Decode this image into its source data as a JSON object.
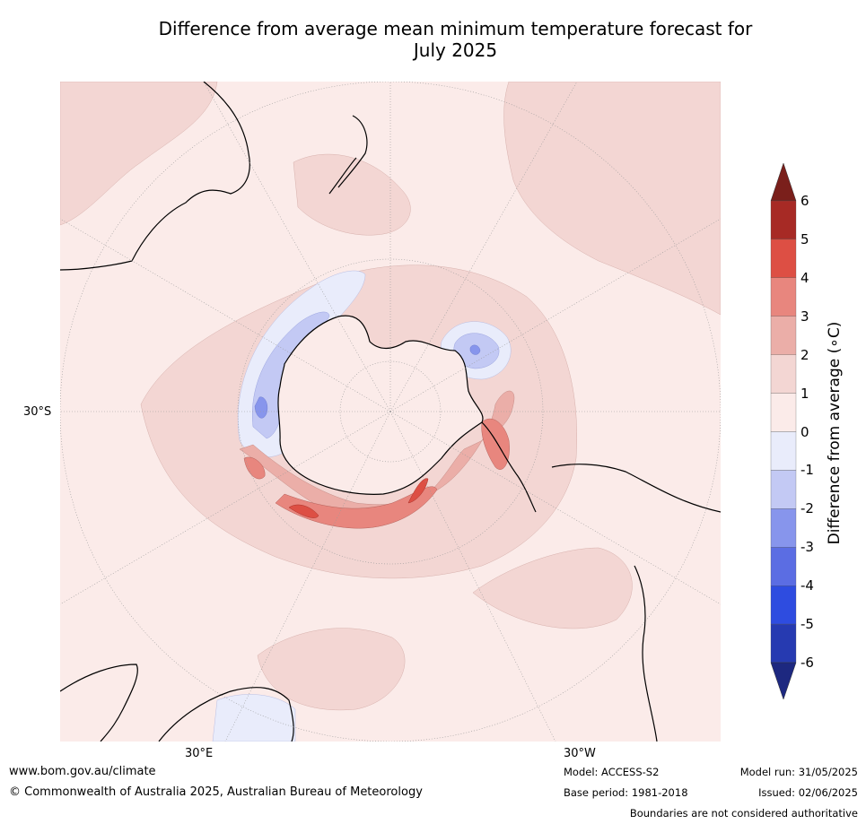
{
  "title_line1": "Difference from average mean minimum temperature forecast for",
  "title_line2": "July 2025",
  "map": {
    "projection": "south-polar-stereographic",
    "lat_labels": {
      "left": "30°S",
      "bottom_left": "30°E",
      "bottom_right": "30°W"
    },
    "colors": {
      "ocean_background": "#fbebe9",
      "anomaly_0_1": "#fbebe9",
      "anomaly_1_2": "#f3d6d3",
      "anomaly_2_3": "#ebaea8",
      "anomaly_3_4": "#e8867e",
      "anomaly_4_5": "#dd4f44",
      "anomaly_5_6": "#a72a25",
      "anomaly_neg_0_1": "#e9ecfb",
      "anomaly_neg_1_2": "#c3c9f4",
      "anomaly_neg_2_3": "#8795ec"
    }
  },
  "colorbar": {
    "label": "Difference from average (∘C)",
    "ticks": [
      "6",
      "5",
      "4",
      "3",
      "2",
      "1",
      "0",
      "-1",
      "-2",
      "-3",
      "-4",
      "-5",
      "-6"
    ],
    "colors": [
      "#a72a25",
      "#dd4f44",
      "#e8867e",
      "#ebaea8",
      "#f3d6d3",
      "#fbebe9",
      "#e9ecfb",
      "#c3c9f4",
      "#8795ec",
      "#5b6de3",
      "#2e4ce0",
      "#263ab1"
    ],
    "over_color": "#7a1f1b",
    "under_color": "#1d2880"
  },
  "footer": {
    "website": "www.bom.gov.au/climate",
    "copyright": "© Commonwealth of Australia 2025, Australian Bureau of Meteorology",
    "model": "Model: ACCESS-S2",
    "base_period": "Base period: 1981-2018",
    "model_run": "Model run: 31/05/2025",
    "issued": "Issued: 02/06/2025",
    "disclaimer": "Boundaries are not considered authoritative"
  }
}
